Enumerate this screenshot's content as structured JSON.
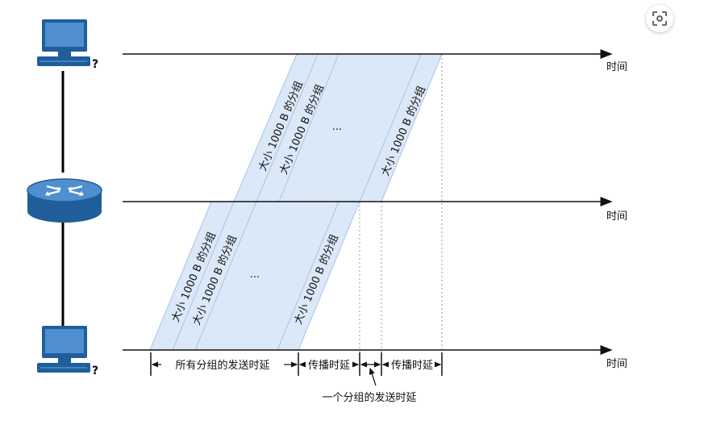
{
  "time_label": "时间",
  "packet_label": "大小 1000 B 的分组",
  "ellipsis": "···",
  "annotations": {
    "all_packets_transmit": "所有分组的发送时延",
    "propagation_1": "传播时延",
    "propagation_2": "传播时延",
    "one_packet_transmit": "一个分组的发送时延"
  },
  "colors": {
    "band_fill": "#dbe8f8",
    "band_stroke": "#b8cfee",
    "axis": "#111111",
    "screen": "#4f8fcf",
    "device_body": "#1f5e9a"
  },
  "icons": {
    "top": "computer-icon",
    "middle": "router-icon",
    "bottom": "computer-icon",
    "corner": "lens-icon"
  }
}
